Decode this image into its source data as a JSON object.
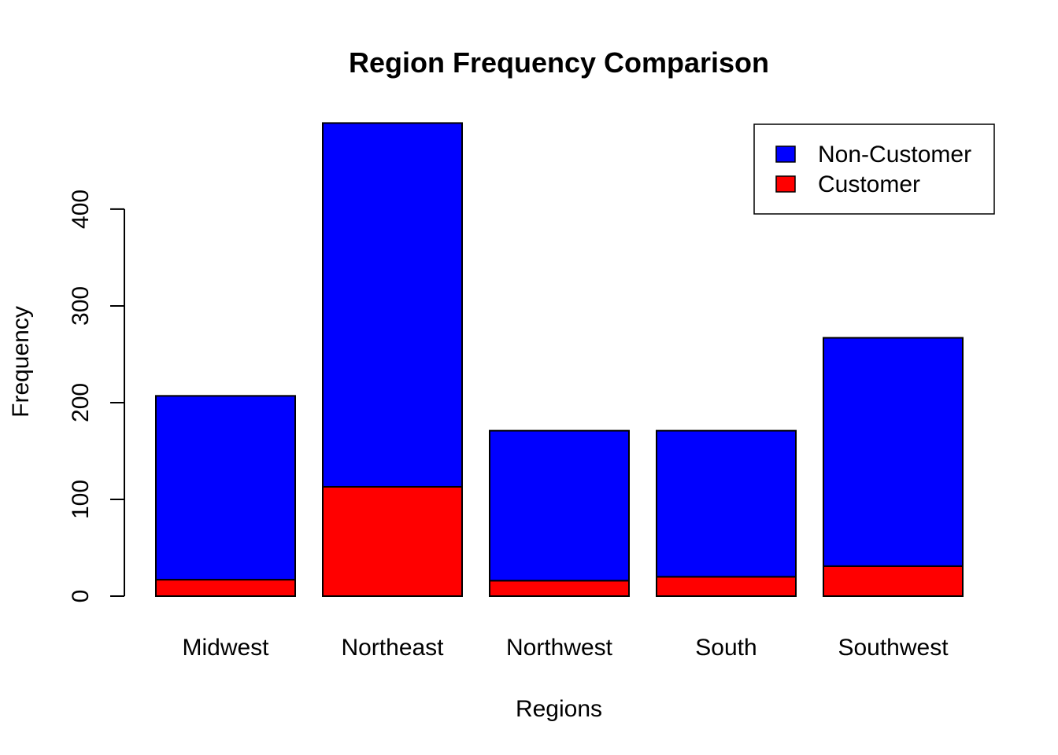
{
  "chart_data": {
    "type": "bar",
    "stacked": true,
    "title": "Region Frequency Comparison",
    "xlabel": "Regions",
    "ylabel": "Frequency",
    "categories": [
      "Midwest",
      "Northeast",
      "Northwest",
      "South",
      "Southwest"
    ],
    "series": [
      {
        "name": "Customer",
        "color": "#FF0000",
        "values": [
          17,
          113,
          16,
          20,
          31
        ]
      },
      {
        "name": "Non-Customer",
        "color": "#0000FF",
        "values": [
          190,
          376,
          155,
          151,
          236
        ]
      }
    ],
    "yticks": [
      0,
      100,
      200,
      300,
      400
    ],
    "ylim": [
      0,
      489
    ],
    "legend": {
      "position": "top-right",
      "entries": [
        {
          "label": "Non-Customer",
          "color": "#0000FF"
        },
        {
          "label": "Customer",
          "color": "#FF0000"
        }
      ]
    },
    "grid": false
  }
}
